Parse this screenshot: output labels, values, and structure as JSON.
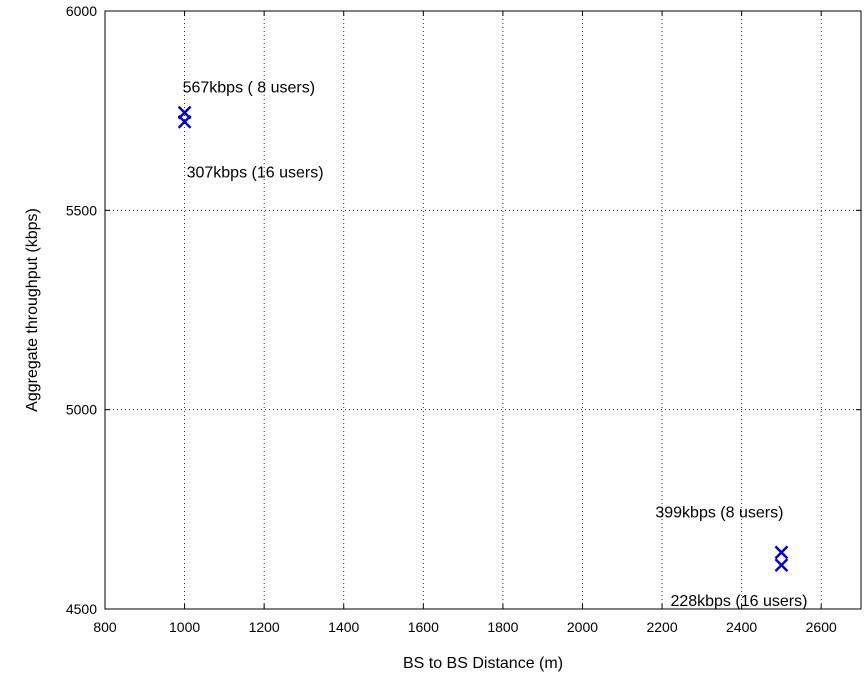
{
  "chart_data": {
    "type": "scatter",
    "title": "",
    "xlabel": "BS to BS Distance (m)",
    "ylabel": "Aggregate throughput (kbps)",
    "xlim": [
      800,
      2700
    ],
    "ylim": [
      4500,
      6000
    ],
    "xticks": [
      800,
      1000,
      1200,
      1400,
      1600,
      1800,
      2000,
      2200,
      2400,
      2600
    ],
    "yticks": [
      4500,
      5000,
      5500,
      6000
    ],
    "grid": true,
    "marker": "x",
    "color": "#0000cc",
    "points": [
      {
        "x": 1000,
        "y": 5745
      },
      {
        "x": 1000,
        "y": 5722
      },
      {
        "x": 2500,
        "y": 4642
      },
      {
        "x": 2500,
        "y": 4610
      }
    ],
    "annotations": [
      {
        "text": "567kbps ( 8 users)",
        "x": 1000,
        "y": 5810
      },
      {
        "text": "307kbps (16 users)",
        "x": 1000,
        "y": 5597
      },
      {
        "text": "399kbps (8 users)",
        "x": 2500,
        "y": 4745
      },
      {
        "text": "228kbps (16 users)",
        "x": 2500,
        "y": 4522
      }
    ]
  }
}
